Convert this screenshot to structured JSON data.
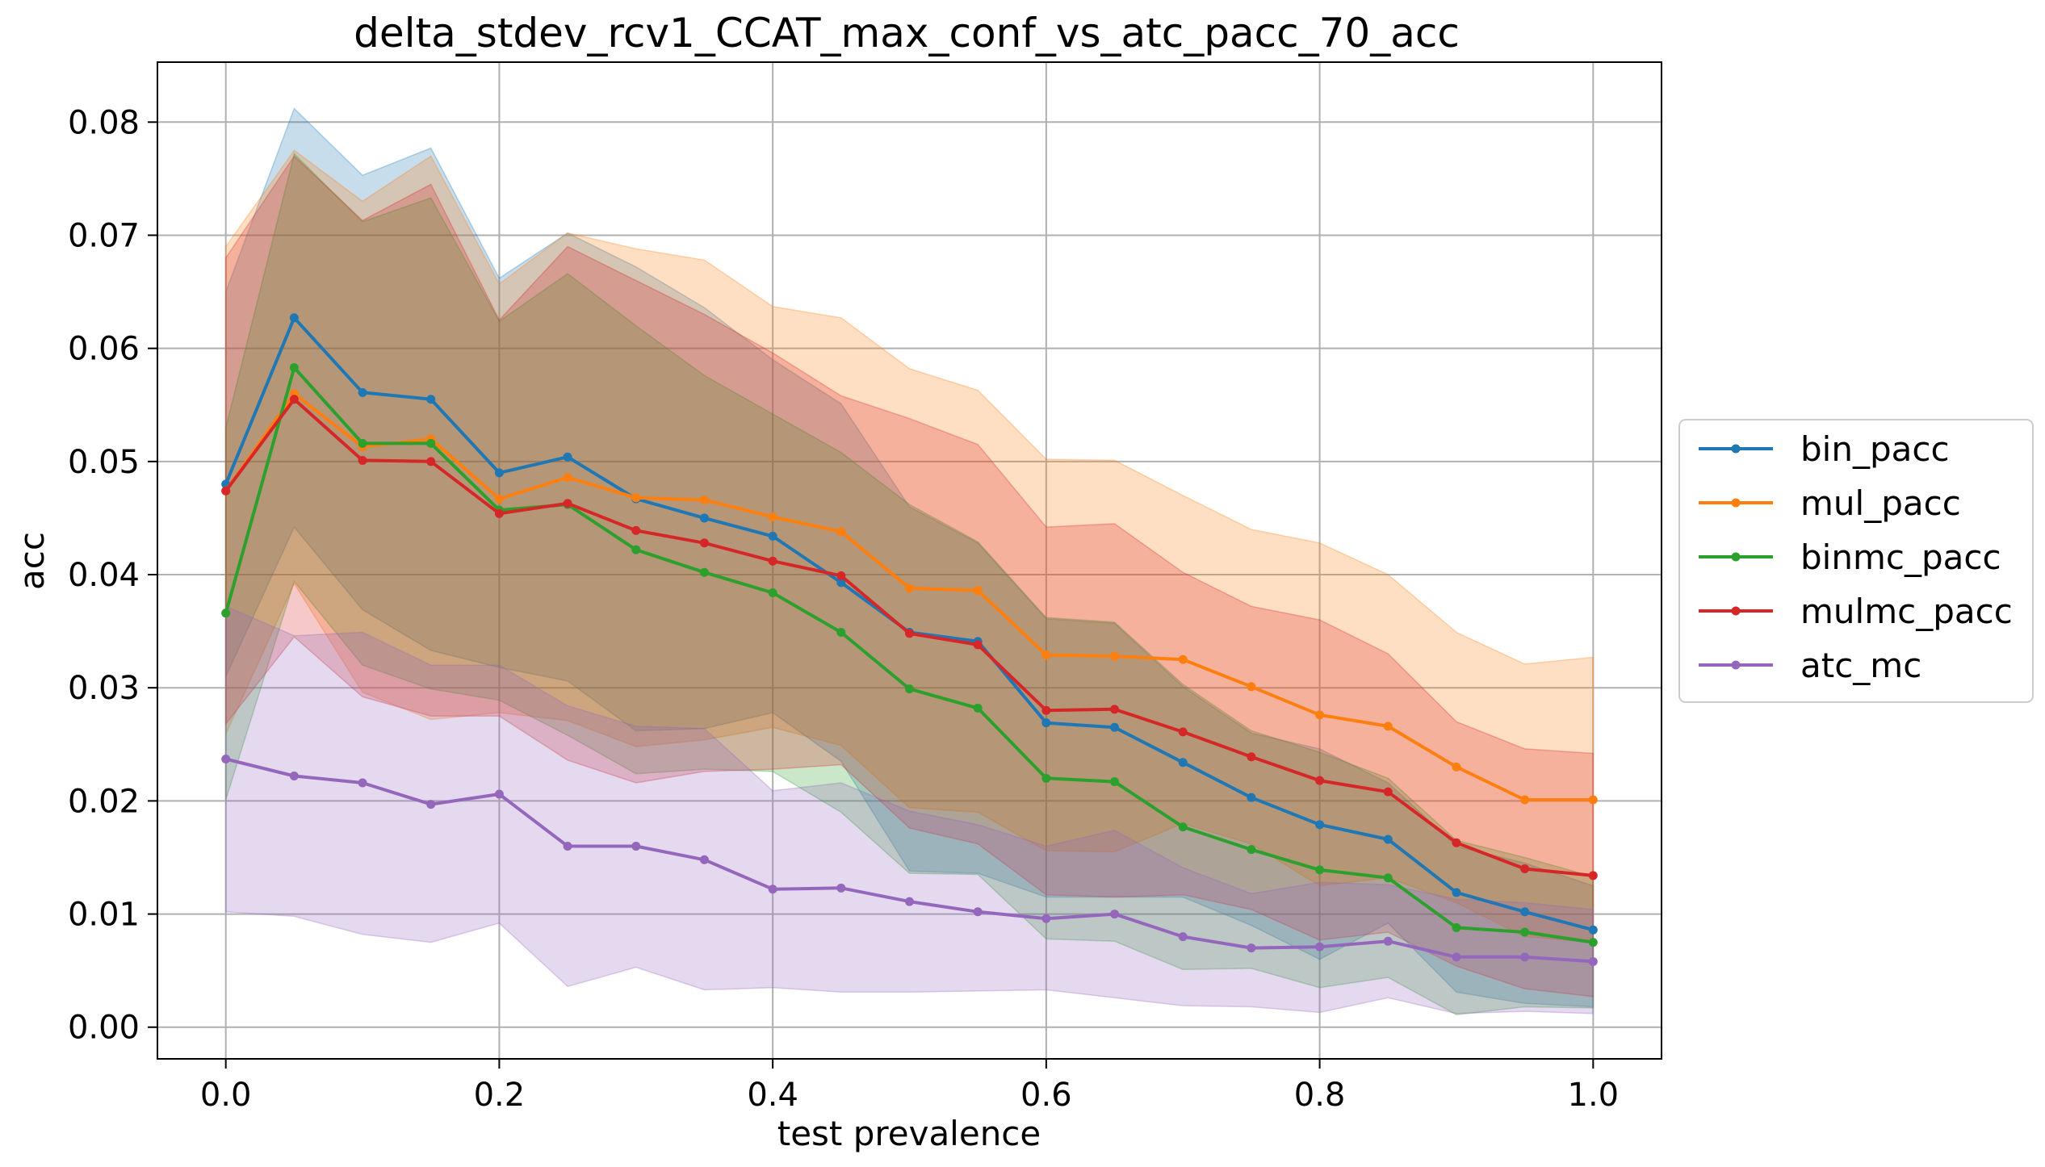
{
  "chart_data": {
    "type": "line",
    "title": "delta_stdev_rcv1_CCAT_max_conf_vs_atc_pacc_70_acc",
    "xlabel": "test prevalence",
    "ylabel": "acc",
    "xlim": [
      -0.05,
      1.05
    ],
    "ylim": [
      -0.0028,
      0.0853
    ],
    "xticks": [
      0.0,
      0.2,
      0.4,
      0.6,
      0.8,
      1.0
    ],
    "xtick_labels": [
      "0.0",
      "0.2",
      "0.4",
      "0.6",
      "0.8",
      "1.0"
    ],
    "yticks": [
      0.0,
      0.01,
      0.02,
      0.03,
      0.04,
      0.05,
      0.06,
      0.07,
      0.08
    ],
    "ytick_labels": [
      "0.00",
      "0.01",
      "0.02",
      "0.03",
      "0.04",
      "0.05",
      "0.06",
      "0.07",
      "0.08"
    ],
    "grid": true,
    "legend_position": "right, outside plot",
    "x": [
      0.0,
      0.05,
      0.1,
      0.15,
      0.2,
      0.25,
      0.3,
      0.35,
      0.4,
      0.45,
      0.5,
      0.55,
      0.6,
      0.65,
      0.7,
      0.75,
      0.8,
      0.85,
      0.9,
      0.95,
      1.0
    ],
    "series": [
      {
        "name": "bin_pacc",
        "color": "#1f77b4",
        "values": [
          0.048,
          0.0627,
          0.0561,
          0.0555,
          0.049,
          0.0504,
          0.0467,
          0.045,
          0.0434,
          0.0393,
          0.0349,
          0.0341,
          0.0269,
          0.0265,
          0.0234,
          0.0203,
          0.0179,
          0.0166,
          0.0119,
          0.0102,
          0.0086
        ],
        "upper": [
          0.065,
          0.0812,
          0.0753,
          0.0777,
          0.0662,
          0.0702,
          0.0672,
          0.0636,
          0.059,
          0.0551,
          0.046,
          0.0428,
          0.0361,
          0.0357,
          0.0301,
          0.026,
          0.0246,
          0.0216,
          0.016,
          0.0145,
          0.0125
        ],
        "lower": [
          0.031,
          0.0442,
          0.0369,
          0.0333,
          0.0318,
          0.0306,
          0.0262,
          0.0264,
          0.0278,
          0.0235,
          0.0138,
          0.0136,
          0.0115,
          0.0115,
          0.0115,
          0.009,
          0.006,
          0.0092,
          0.0031,
          0.0021,
          0.0018
        ]
      },
      {
        "name": "mul_pacc",
        "color": "#ff7f0e",
        "values": [
          0.0474,
          0.056,
          0.0513,
          0.052,
          0.0467,
          0.0486,
          0.0468,
          0.0466,
          0.0451,
          0.0438,
          0.0388,
          0.0386,
          0.0329,
          0.0328,
          0.0325,
          0.0301,
          0.0276,
          0.0266,
          0.023,
          0.0201,
          0.0201
        ],
        "upper": [
          0.069,
          0.0775,
          0.073,
          0.077,
          0.0657,
          0.0702,
          0.0688,
          0.0678,
          0.0637,
          0.0627,
          0.0582,
          0.0563,
          0.0502,
          0.0501,
          0.047,
          0.044,
          0.0428,
          0.04,
          0.0349,
          0.0321,
          0.0327
        ],
        "lower": [
          0.0259,
          0.0392,
          0.0296,
          0.0272,
          0.0278,
          0.0271,
          0.0248,
          0.0254,
          0.0265,
          0.0249,
          0.0194,
          0.019,
          0.0156,
          0.0155,
          0.018,
          0.0162,
          0.0125,
          0.0132,
          0.011,
          0.008,
          0.0075
        ]
      },
      {
        "name": "binmc_pacc",
        "color": "#2ca02c",
        "values": [
          0.0366,
          0.0583,
          0.0516,
          0.0516,
          0.0457,
          0.0462,
          0.0422,
          0.0402,
          0.0384,
          0.0349,
          0.0299,
          0.0282,
          0.022,
          0.0217,
          0.0177,
          0.0157,
          0.0139,
          0.0132,
          0.0088,
          0.0084,
          0.0075
        ],
        "upper": [
          0.053,
          0.0772,
          0.0712,
          0.0733,
          0.0624,
          0.0666,
          0.062,
          0.0576,
          0.0542,
          0.0508,
          0.0462,
          0.0429,
          0.0362,
          0.0358,
          0.0303,
          0.0262,
          0.0243,
          0.022,
          0.0165,
          0.015,
          0.0133
        ],
        "lower": [
          0.0201,
          0.0394,
          0.032,
          0.0299,
          0.0289,
          0.0258,
          0.0224,
          0.0228,
          0.0226,
          0.019,
          0.0136,
          0.0135,
          0.0078,
          0.0076,
          0.0051,
          0.0052,
          0.0035,
          0.0044,
          0.0011,
          0.0018,
          0.0017
        ]
      },
      {
        "name": "mulmc_pacc",
        "color": "#d62728",
        "values": [
          0.0474,
          0.0555,
          0.0501,
          0.05,
          0.0454,
          0.0463,
          0.0439,
          0.0428,
          0.0412,
          0.0399,
          0.0348,
          0.0338,
          0.028,
          0.0281,
          0.0261,
          0.0239,
          0.0218,
          0.0208,
          0.0163,
          0.014,
          0.0134
        ],
        "upper": [
          0.068,
          0.077,
          0.0713,
          0.0745,
          0.0625,
          0.069,
          0.066,
          0.063,
          0.0596,
          0.0558,
          0.0538,
          0.0515,
          0.0442,
          0.0445,
          0.0402,
          0.0372,
          0.036,
          0.033,
          0.027,
          0.0246,
          0.0242
        ],
        "lower": [
          0.0268,
          0.0345,
          0.0292,
          0.0275,
          0.0275,
          0.0236,
          0.0216,
          0.0226,
          0.0228,
          0.0232,
          0.0176,
          0.0162,
          0.0117,
          0.0115,
          0.0117,
          0.0104,
          0.0077,
          0.0084,
          0.0054,
          0.0034,
          0.0027
        ]
      },
      {
        "name": "atc_mc",
        "color": "#9467bd",
        "values": [
          0.0237,
          0.0222,
          0.0216,
          0.0197,
          0.0206,
          0.016,
          0.016,
          0.0148,
          0.0122,
          0.0123,
          0.0111,
          0.0102,
          0.0096,
          0.01,
          0.008,
          0.007,
          0.0071,
          0.0076,
          0.0062,
          0.0062,
          0.0058
        ],
        "upper": [
          0.0372,
          0.0346,
          0.0349,
          0.032,
          0.032,
          0.0284,
          0.0266,
          0.0264,
          0.0209,
          0.0216,
          0.0191,
          0.0179,
          0.016,
          0.0174,
          0.0141,
          0.0118,
          0.0128,
          0.0126,
          0.0113,
          0.011,
          0.0104
        ],
        "lower": [
          0.0102,
          0.0098,
          0.0082,
          0.0075,
          0.0092,
          0.0036,
          0.0053,
          0.0033,
          0.0035,
          0.0031,
          0.0031,
          0.0032,
          0.0033,
          0.0026,
          0.0019,
          0.0018,
          0.0013,
          0.0026,
          0.0012,
          0.0014,
          0.0012
        ]
      }
    ]
  }
}
